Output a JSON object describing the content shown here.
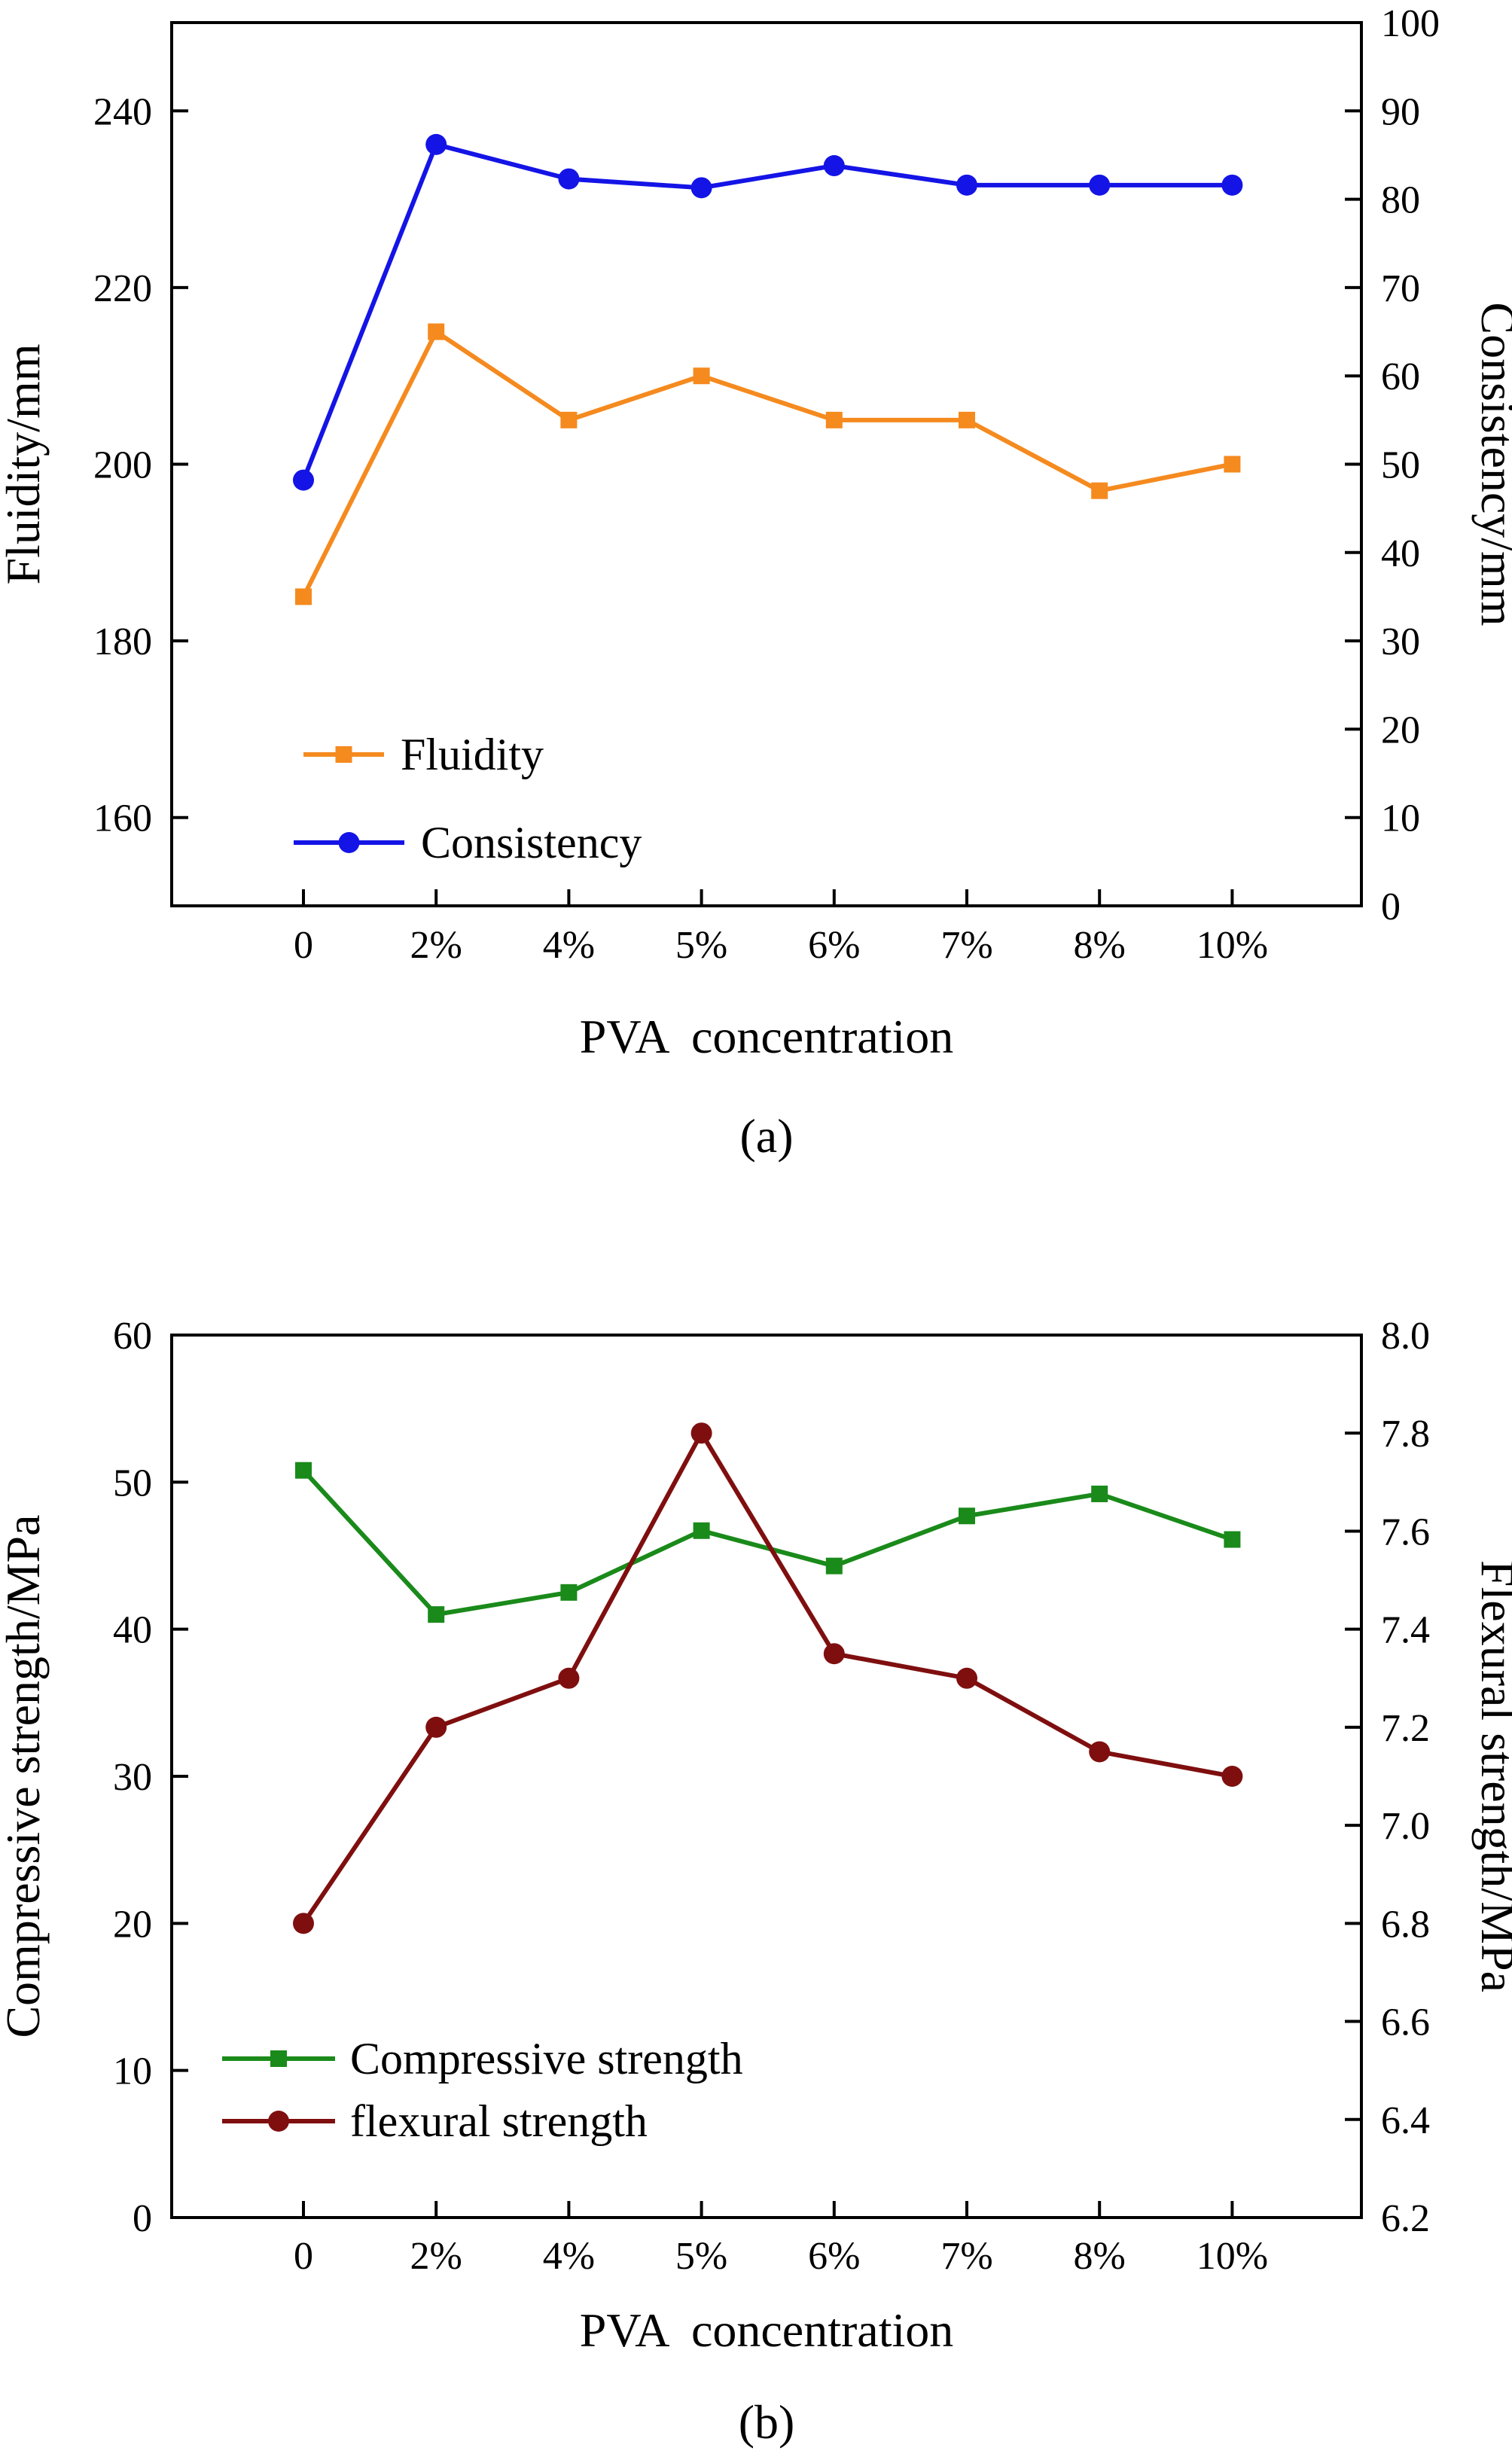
{
  "chart_data": [
    {
      "type": "line",
      "panel_label": "(a)",
      "categories": [
        "0",
        "2%",
        "4%",
        "5%",
        "6%",
        "7%",
        "8%",
        "10%"
      ],
      "xlabel": "PVA  concentration",
      "ylabel_left": "Fluidity/mm",
      "ylabel_right": "Consistency/mm",
      "ylim_left": [
        150,
        250
      ],
      "ylim_right": [
        0,
        100
      ],
      "yticks_left": [
        160,
        180,
        200,
        220,
        240
      ],
      "yticks_right": [
        0,
        10,
        20,
        30,
        40,
        50,
        60,
        70,
        80,
        90,
        100
      ],
      "legend_position": "bottom-left",
      "series": [
        {
          "name": "Fluidity",
          "axis": "left",
          "marker": "square",
          "color": "#F58A1F",
          "values": [
            185,
            215,
            205,
            210,
            205,
            205,
            197,
            200
          ]
        },
        {
          "name": "Consistency",
          "axis": "right",
          "marker": "circle",
          "color": "#1414E6",
          "values": [
            48.2,
            86.2,
            82.3,
            81.3,
            83.8,
            81.6,
            81.6,
            81.6
          ]
        }
      ]
    },
    {
      "type": "line",
      "panel_label": "(b)",
      "categories": [
        "0",
        "2%",
        "4%",
        "5%",
        "6%",
        "7%",
        "8%",
        "10%"
      ],
      "xlabel": "PVA  concentration",
      "ylabel_left": "Compressive strength/MPa",
      "ylabel_right": "Flexural strength/MPa",
      "ylim_left": [
        0,
        60
      ],
      "ylim_right": [
        6.2,
        8.0
      ],
      "yticks_left": [
        0,
        10,
        20,
        30,
        40,
        50,
        60
      ],
      "yticks_right": [
        "6.2",
        "6.4",
        "6.6",
        "6.8",
        "7.0",
        "7.2",
        "7.4",
        "7.6",
        "7.8",
        "8.0"
      ],
      "legend_position": "bottom-left",
      "series": [
        {
          "name": "Compressive strength",
          "axis": "left",
          "marker": "square",
          "color": "#1A8A1A",
          "values": [
            50.8,
            41.0,
            42.5,
            46.7,
            44.3,
            47.7,
            49.2,
            46.1
          ]
        },
        {
          "name": "flexural strength",
          "axis": "right",
          "marker": "circle",
          "color": "#7F0F0F",
          "values": [
            6.8,
            7.2,
            7.3,
            7.8,
            7.35,
            7.3,
            7.15,
            7.1
          ]
        }
      ]
    }
  ]
}
